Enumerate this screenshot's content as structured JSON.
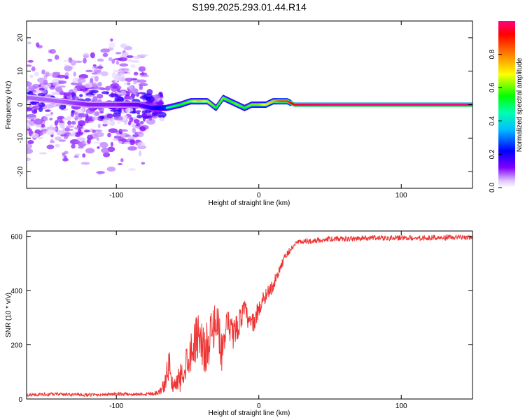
{
  "title": "S199.2025.293.01.44.R14",
  "chart_data": [
    {
      "type": "heatmap",
      "xlabel": "Height of straight line (km)",
      "ylabel": "Frequency (Hz)",
      "xlim": [
        -163,
        150
      ],
      "ylim": [
        -25,
        25
      ],
      "xticks": [
        -100,
        0,
        100
      ],
      "yticks": [
        -20,
        -10,
        0,
        10,
        20
      ],
      "colorbar": {
        "label": "Normalized spectral amplitude",
        "range": [
          0,
          1
        ],
        "ticks": [
          0.0,
          0.2,
          0.4,
          0.6,
          0.8
        ],
        "tick_labels": [
          "0.0",
          "0.2",
          "0.4",
          "0.6",
          "0.8"
        ],
        "colormap": [
          "#ffffff",
          "#d9b3ff",
          "#6a00ff",
          "#0000ff",
          "#00e5ff",
          "#00ff55",
          "#ffff00",
          "#ff8800",
          "#ff0000",
          "#ff0080"
        ]
      },
      "ridge": {
        "x": [
          -160,
          -140,
          -120,
          -100,
          -85,
          -75,
          -65,
          -55,
          -48,
          -42,
          -36,
          -30,
          -25,
          -20,
          -15,
          -10,
          -5,
          0,
          5,
          10,
          15,
          20,
          25,
          50,
          75,
          100,
          125,
          150
        ],
        "y": [
          2,
          1,
          0,
          0,
          0,
          -1,
          -1,
          0,
          1,
          1,
          1,
          -1,
          2,
          1,
          0,
          -1,
          0,
          0,
          0,
          1,
          1,
          1,
          0,
          0,
          0,
          0,
          0,
          0
        ],
        "amplitude": [
          0.15,
          0.15,
          0.2,
          0.2,
          0.25,
          0.35,
          0.45,
          0.55,
          0.6,
          0.75,
          0.65,
          0.55,
          0.6,
          0.55,
          0.6,
          0.55,
          0.6,
          0.6,
          0.7,
          0.75,
          0.85,
          0.85,
          0.95,
          1.0,
          1.0,
          1.0,
          1.0,
          1.0
        ]
      }
    },
    {
      "type": "line",
      "xlabel": "Height of straight line (km)",
      "ylabel": "SNR (10 * v/v)",
      "xlim": [
        -163,
        150
      ],
      "ylim": [
        0,
        620
      ],
      "xticks": [
        -100,
        0,
        100
      ],
      "yticks": [
        0,
        200,
        400,
        600
      ],
      "color": "#ee3333",
      "series": [
        {
          "x": [
            -163,
            -140,
            -120,
            -100,
            -85,
            -75,
            -70,
            -66,
            -63,
            -60,
            -57,
            -54,
            -50,
            -46,
            -42,
            -38,
            -34,
            -30,
            -26,
            -22,
            -18,
            -14,
            -10,
            -6,
            -2,
            2,
            6,
            10,
            14,
            18,
            22,
            26,
            30,
            40,
            50,
            60,
            70,
            80,
            90,
            100,
            110,
            120,
            130,
            140,
            150
          ],
          "y": [
            15,
            18,
            15,
            18,
            18,
            20,
            25,
            55,
            130,
            40,
            60,
            90,
            150,
            200,
            250,
            170,
            230,
            300,
            180,
            260,
            240,
            280,
            330,
            270,
            300,
            360,
            390,
            420,
            470,
            520,
            550,
            575,
            580,
            585,
            590,
            590,
            592,
            595,
            593,
            595,
            592,
            596,
            594,
            597,
            595
          ],
          "noise": [
            6,
            6,
            6,
            6,
            6,
            8,
            10,
            30,
            60,
            40,
            50,
            60,
            70,
            80,
            90,
            90,
            90,
            80,
            80,
            70,
            60,
            50,
            40,
            40,
            40,
            30,
            30,
            25,
            20,
            15,
            12,
            10,
            10,
            10,
            10,
            10,
            10,
            10,
            10,
            10,
            10,
            10,
            10,
            10,
            10
          ]
        }
      ]
    }
  ]
}
